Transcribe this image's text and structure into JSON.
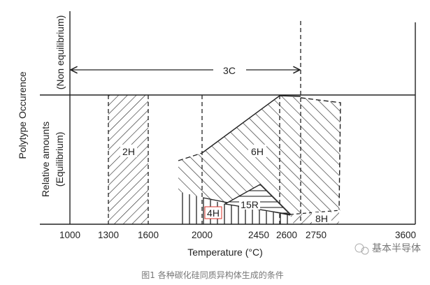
{
  "diagram": {
    "y_axis_label": "Polytype Occurence",
    "upper_region_label": "(Non equilibrium)",
    "lower_region_label_1": "Relative amounts",
    "lower_region_label_2": "(Equilibrium)",
    "x_axis_label": "Temperature (°C)",
    "x_ticks": [
      "1000",
      "1300",
      "1600",
      "2000",
      "2450",
      "2600",
      "2750",
      "3600"
    ],
    "regions": {
      "r3C": "3C",
      "r2H": "2H",
      "r6H": "6H",
      "r4H": "4H",
      "r15R": "15R",
      "r8H": "8H"
    },
    "highlight_color": "#d9342b"
  },
  "watermark": "基本半导体",
  "caption": "图1 各种碳化硅同质异构体生成的条件"
}
